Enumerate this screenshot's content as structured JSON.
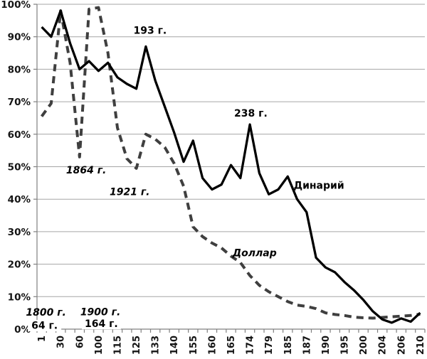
{
  "chart_data": {
    "type": "line",
    "title": "",
    "grid": "horizontal",
    "legend_position": "inline-labels",
    "ylim": [
      0,
      100
    ],
    "y_tick_labels": [
      "0%",
      "10%",
      "20%",
      "30%",
      "40%",
      "50%",
      "60%",
      "70%",
      "80%",
      "90%",
      "100%"
    ],
    "x_tick_labels": [
      "1",
      "30",
      "60",
      "100",
      "115",
      "125",
      "133",
      "140",
      "155",
      "160",
      "165",
      "174",
      "179",
      "185",
      "187",
      "190",
      "195",
      "200",
      "204",
      "206",
      "210"
    ],
    "x_labels_every": 2,
    "colors": {
      "denarius_line": "#000000",
      "dollar_line": "#3f3f3f",
      "gridline": "#a6a6a6",
      "axis": "#808080",
      "text": "#151515",
      "background": "#ffffff"
    },
    "series": [
      {
        "name": "Доллар",
        "style": "dashed",
        "color": "#3f3f3f",
        "values": [
          65.5,
          69.5,
          98,
          82,
          53,
          98.5,
          99,
          85,
          62,
          52.5,
          49.5,
          60,
          58.5,
          56,
          51,
          44,
          31.5,
          28.5,
          26.5,
          25,
          22.5,
          20.5,
          16.5,
          13.5,
          11.5,
          10,
          8.5,
          7.4,
          7,
          6.3,
          5,
          4.5,
          4.2,
          3.7,
          3.5,
          3.4,
          3.6,
          3.8,
          4,
          4.2,
          4.6
        ]
      },
      {
        "name": "Динарий",
        "style": "solid",
        "color": "#000000",
        "values": [
          93,
          90,
          98,
          88,
          80,
          82.5,
          79.5,
          82,
          77.5,
          75.5,
          74,
          87,
          76.5,
          68.5,
          60.5,
          51.5,
          58,
          46.5,
          43,
          44.5,
          50.5,
          46.5,
          63,
          48,
          41.5,
          43,
          47,
          40,
          36,
          22,
          19,
          17.5,
          14.5,
          12,
          9,
          5.5,
          3,
          2,
          3.3,
          2.3,
          5
        ]
      }
    ],
    "annotations": [
      {
        "id": "year-193",
        "text": "193 г.",
        "p": 11.45,
        "v": 92,
        "italic": false,
        "bg": false
      },
      {
        "id": "year-238",
        "text": "238 г.",
        "p": 22.1,
        "v": 66.5,
        "italic": false,
        "bg": false
      },
      {
        "id": "label-denarius",
        "text": "Динарий",
        "p": 29.3,
        "v": 44.3,
        "italic": false,
        "bg": false
      },
      {
        "id": "label-dollar",
        "text": "Доллар",
        "p": 22.5,
        "v": 23.5,
        "italic": true,
        "bg": false
      },
      {
        "id": "year-1864",
        "text": "1864 г.",
        "p": 4.7,
        "v": 49,
        "italic": true,
        "bg": false
      },
      {
        "id": "year-1921",
        "text": "1921 г.",
        "p": 9.3,
        "v": 42.3,
        "italic": true,
        "bg": false
      },
      {
        "id": "year-1800",
        "text": "1800 г.",
        "p": 0.45,
        "v": 5.2,
        "italic": true,
        "bg": false
      },
      {
        "id": "year-64",
        "text": "64 г.",
        "p": 0.3,
        "v": 1.2,
        "italic": false,
        "bg": true
      },
      {
        "id": "year-1900",
        "text": "1900 г.",
        "p": 6.2,
        "v": 5.4,
        "italic": true,
        "bg": false
      },
      {
        "id": "year-164",
        "text": "164 г.",
        "p": 6.3,
        "v": 1.8,
        "italic": false,
        "bg": true
      }
    ]
  }
}
